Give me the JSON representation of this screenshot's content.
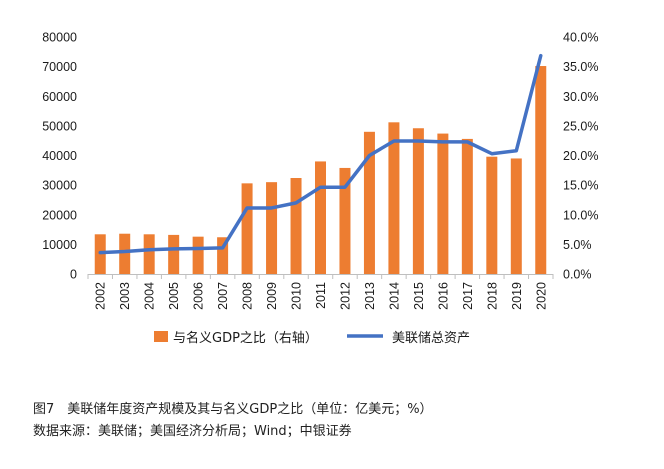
{
  "chart_data": {
    "type": "bar+line",
    "categories": [
      "2002",
      "2003",
      "2004",
      "2005",
      "2006",
      "2007",
      "2008",
      "2009",
      "2010",
      "2011",
      "2012",
      "2013",
      "2014",
      "2015",
      "2016",
      "2017",
      "2018",
      "2019",
      "2020"
    ],
    "series": [
      {
        "name": "美联储总资产",
        "type": "line",
        "axis": "left",
        "color": "#4472C4",
        "values": [
          7200,
          7600,
          8200,
          8500,
          8600,
          8800,
          22300,
          22300,
          24000,
          29300,
          29300,
          40000,
          44900,
          44900,
          44600,
          44600,
          40600,
          41600,
          73700
        ]
      },
      {
        "name": "与名义GDP之比（右轴）",
        "type": "bar",
        "axis": "right",
        "color": "#ED7D31",
        "values": [
          6.7,
          6.8,
          6.7,
          6.6,
          6.3,
          6.2,
          15.3,
          15.5,
          16.2,
          19.0,
          17.9,
          24.0,
          25.6,
          24.6,
          23.7,
          22.8,
          19.8,
          19.5,
          35.1
        ]
      }
    ],
    "y_left": {
      "ticks": [
        "0",
        "10000",
        "20000",
        "30000",
        "40000",
        "50000",
        "60000",
        "70000",
        "80000"
      ],
      "ylim": [
        0,
        80000
      ]
    },
    "y_right": {
      "ticks": [
        "0.0%",
        "5.0%",
        "10.0%",
        "15.0%",
        "20.0%",
        "25.0%",
        "30.0%",
        "35.0%",
        "40.0%"
      ],
      "ylim": [
        0,
        40
      ]
    },
    "grid": false,
    "legend_placement": "bottom"
  },
  "caption": {
    "title": "图7　美联储年度资产规模及其与名义GDP之比（单位：亿美元；%）",
    "source": "数据来源：美联储；美国经济分析局；Wind；中银证券"
  }
}
